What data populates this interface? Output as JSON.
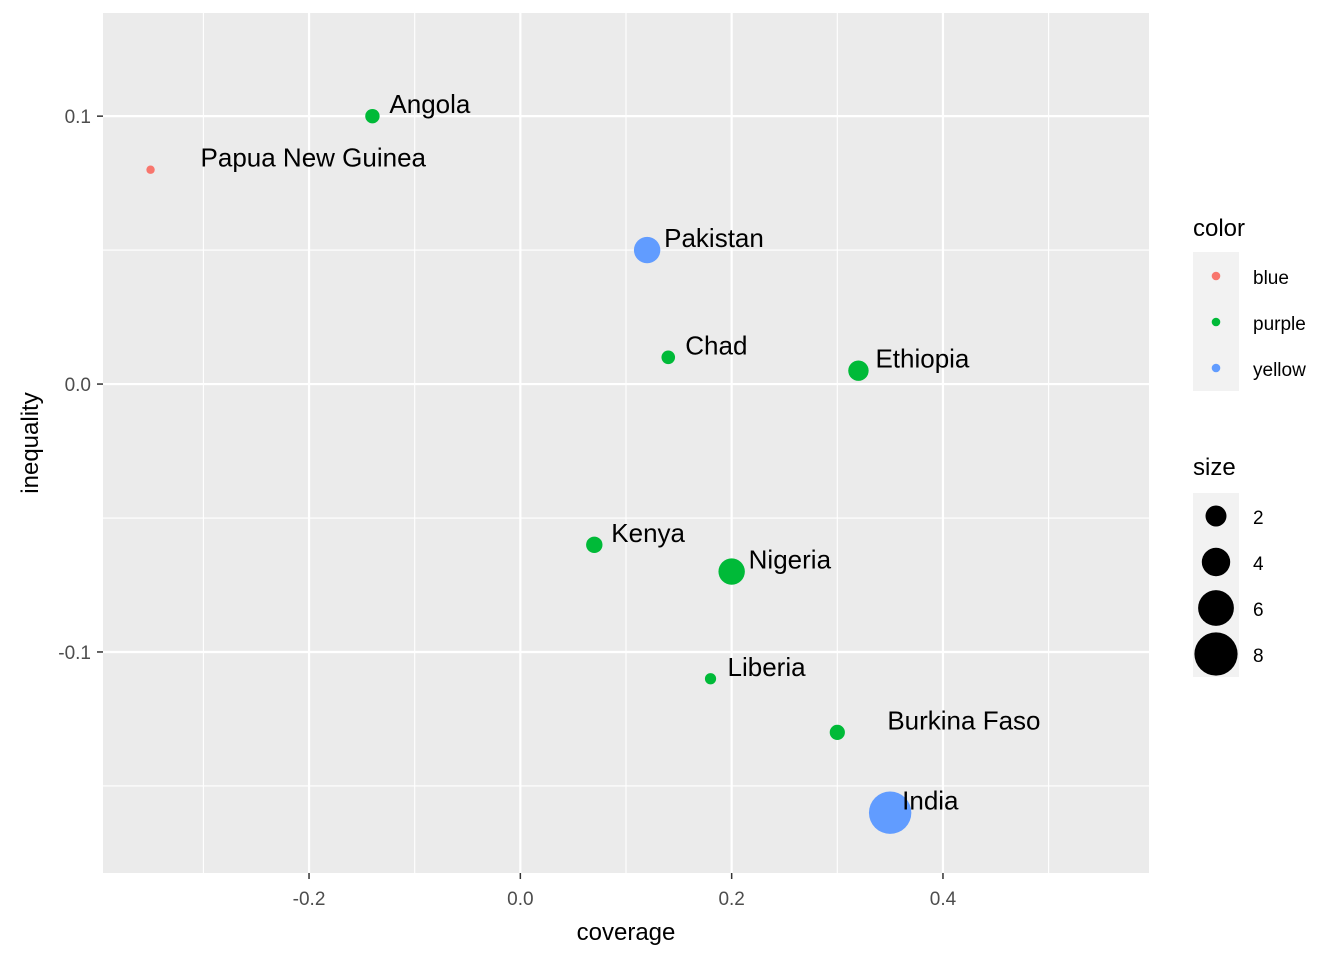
{
  "chart_data": {
    "type": "scatter",
    "xlabel": "coverage",
    "ylabel": "inequality",
    "xlim": [
      -0.395,
      0.595
    ],
    "ylim": [
      -0.1825,
      0.1385
    ],
    "x_ticks": [
      -0.2,
      0.0,
      0.2,
      0.4
    ],
    "x_tick_labels": [
      "-0.2",
      "0.0",
      "0.2",
      "0.4"
    ],
    "y_ticks": [
      -0.1,
      0.0,
      0.1
    ],
    "y_tick_labels": [
      "-0.1",
      "0.0",
      "0.1"
    ],
    "grid": true,
    "colors": {
      "blue": "#F8766D",
      "purple": "#00BA38",
      "yellow": "#619CFF"
    },
    "points": [
      {
        "label": "Angola",
        "x": -0.14,
        "y": 0.1,
        "color": "purple",
        "size": 2
      },
      {
        "label": "Papua New Guinea",
        "x": -0.35,
        "y": 0.08,
        "color": "blue",
        "size": 0.5
      },
      {
        "label": "Pakistan",
        "x": 0.12,
        "y": 0.05,
        "color": "yellow",
        "size": 5
      },
      {
        "label": "Chad",
        "x": 0.14,
        "y": 0.01,
        "color": "purple",
        "size": 1.8
      },
      {
        "label": "Ethiopia",
        "x": 0.32,
        "y": 0.005,
        "color": "purple",
        "size": 3.5
      },
      {
        "label": "Kenya",
        "x": 0.07,
        "y": -0.06,
        "color": "purple",
        "size": 2.5
      },
      {
        "label": "Nigeria",
        "x": 0.2,
        "y": -0.07,
        "color": "purple",
        "size": 5
      },
      {
        "label": "Liberia",
        "x": 0.18,
        "y": -0.11,
        "color": "purple",
        "size": 1.2
      },
      {
        "label": "Burkina Faso",
        "x": 0.3,
        "y": -0.13,
        "color": "purple",
        "size": 2.2
      },
      {
        "label": "India",
        "x": 0.35,
        "y": -0.16,
        "color": "yellow",
        "size": 9
      }
    ],
    "legend": {
      "placement": "right",
      "color_title": "color",
      "color_entries": [
        {
          "label": "blue",
          "color": "blue"
        },
        {
          "label": "purple",
          "color": "purple"
        },
        {
          "label": "yellow",
          "color": "yellow"
        }
      ],
      "size_title": "size",
      "size_entries": [
        {
          "label": "2",
          "size": 2
        },
        {
          "label": "4",
          "size": 4
        },
        {
          "label": "6",
          "size": 6
        },
        {
          "label": "8",
          "size": 8
        }
      ]
    }
  }
}
